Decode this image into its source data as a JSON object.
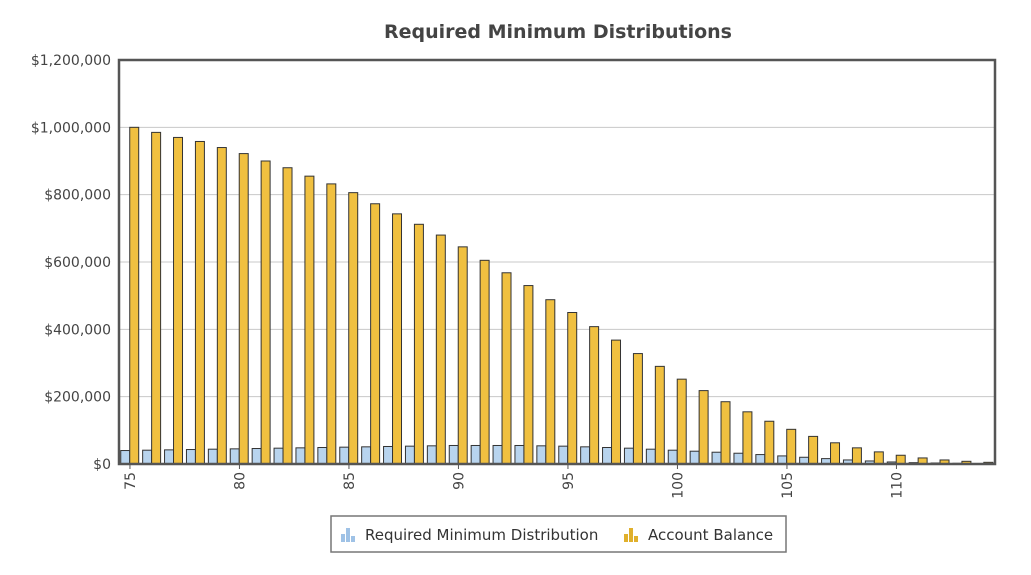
{
  "chart_data": {
    "type": "bar",
    "title": "Required Minimum Distributions",
    "xlabel": "",
    "ylabel": "",
    "ylim": [
      0,
      1200000
    ],
    "y_ticks": [
      0,
      200000,
      400000,
      600000,
      800000,
      1000000,
      1200000
    ],
    "y_tick_labels": [
      "$0",
      "$200,000",
      "$400,000",
      "$600,000",
      "$800,000",
      "$1,000,000",
      "$1,200,000"
    ],
    "x_tick_labels": [
      "75",
      "80",
      "85",
      "90",
      "95",
      "100",
      "105",
      "110"
    ],
    "categories": [
      75,
      76,
      77,
      78,
      79,
      80,
      81,
      82,
      83,
      84,
      85,
      86,
      87,
      88,
      89,
      90,
      91,
      92,
      93,
      94,
      95,
      96,
      97,
      98,
      99,
      100,
      101,
      102,
      103,
      104,
      105,
      106,
      107,
      108,
      109,
      110,
      111,
      112,
      113,
      114
    ],
    "series": [
      {
        "name": "Required Minimum Distribution",
        "color": "#b8d4ee",
        "values": [
          40000,
          41000,
          42000,
          43000,
          44000,
          45000,
          46000,
          47000,
          48000,
          49000,
          50000,
          51000,
          52000,
          53000,
          54000,
          55000,
          55000,
          55000,
          55000,
          54000,
          53000,
          51000,
          49000,
          47000,
          44000,
          41000,
          38000,
          35000,
          32000,
          28000,
          24000,
          20000,
          16000,
          12000,
          9000,
          6000,
          4000,
          3000,
          2000,
          1000
        ]
      },
      {
        "name": "Account Balance",
        "color": "#f0c040",
        "values": [
          1000000,
          985000,
          970000,
          958000,
          940000,
          922000,
          900000,
          880000,
          855000,
          832000,
          806000,
          773000,
          743000,
          712000,
          680000,
          645000,
          605000,
          568000,
          530000,
          488000,
          450000,
          408000,
          368000,
          328000,
          290000,
          252000,
          218000,
          185000,
          155000,
          127000,
          103000,
          82000,
          63000,
          48000,
          36000,
          26000,
          18000,
          12000,
          8000,
          5000
        ]
      }
    ],
    "grid": true,
    "legend": "bottom-center"
  }
}
